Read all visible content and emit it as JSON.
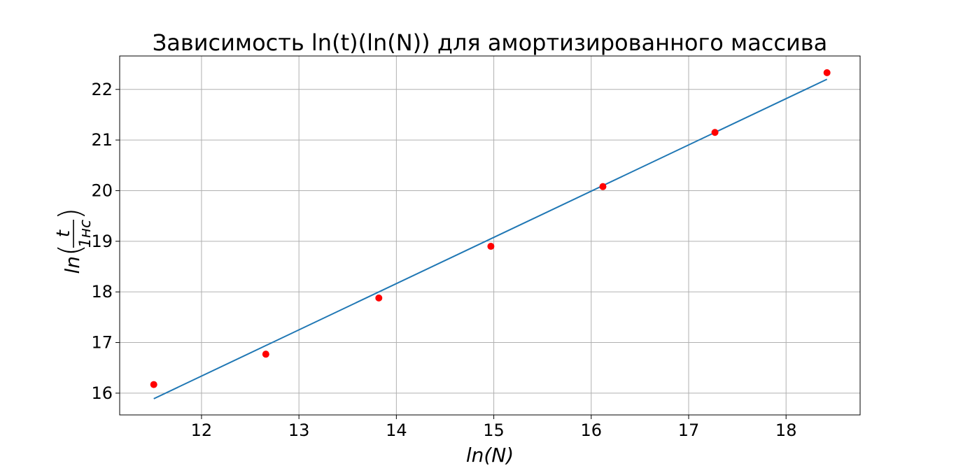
{
  "chart_data": {
    "type": "scatter",
    "title": "Зависимость ln(t)(ln(N)) для амортизированного массива",
    "xlabel": "ln(N)",
    "ylabel": {
      "prefix": "ln",
      "numerator": "t",
      "denominator": "1нс"
    },
    "xlim": [
      11.16,
      18.76
    ],
    "ylim": [
      15.57,
      22.66
    ],
    "x_ticks": [
      12,
      13,
      14,
      15,
      16,
      17,
      18
    ],
    "y_ticks": [
      16,
      17,
      18,
      19,
      20,
      21,
      22
    ],
    "grid": true,
    "series": [
      {
        "type": "scatter",
        "color": "#ff0000",
        "x": [
          11.51,
          12.66,
          13.82,
          14.97,
          16.12,
          17.27,
          18.42
        ],
        "y": [
          16.17,
          16.77,
          17.88,
          18.9,
          20.08,
          21.15,
          22.33
        ]
      },
      {
        "type": "line",
        "color": "#1f77b4",
        "x": [
          11.51,
          18.42
        ],
        "y": [
          15.89,
          22.2
        ]
      }
    ]
  }
}
